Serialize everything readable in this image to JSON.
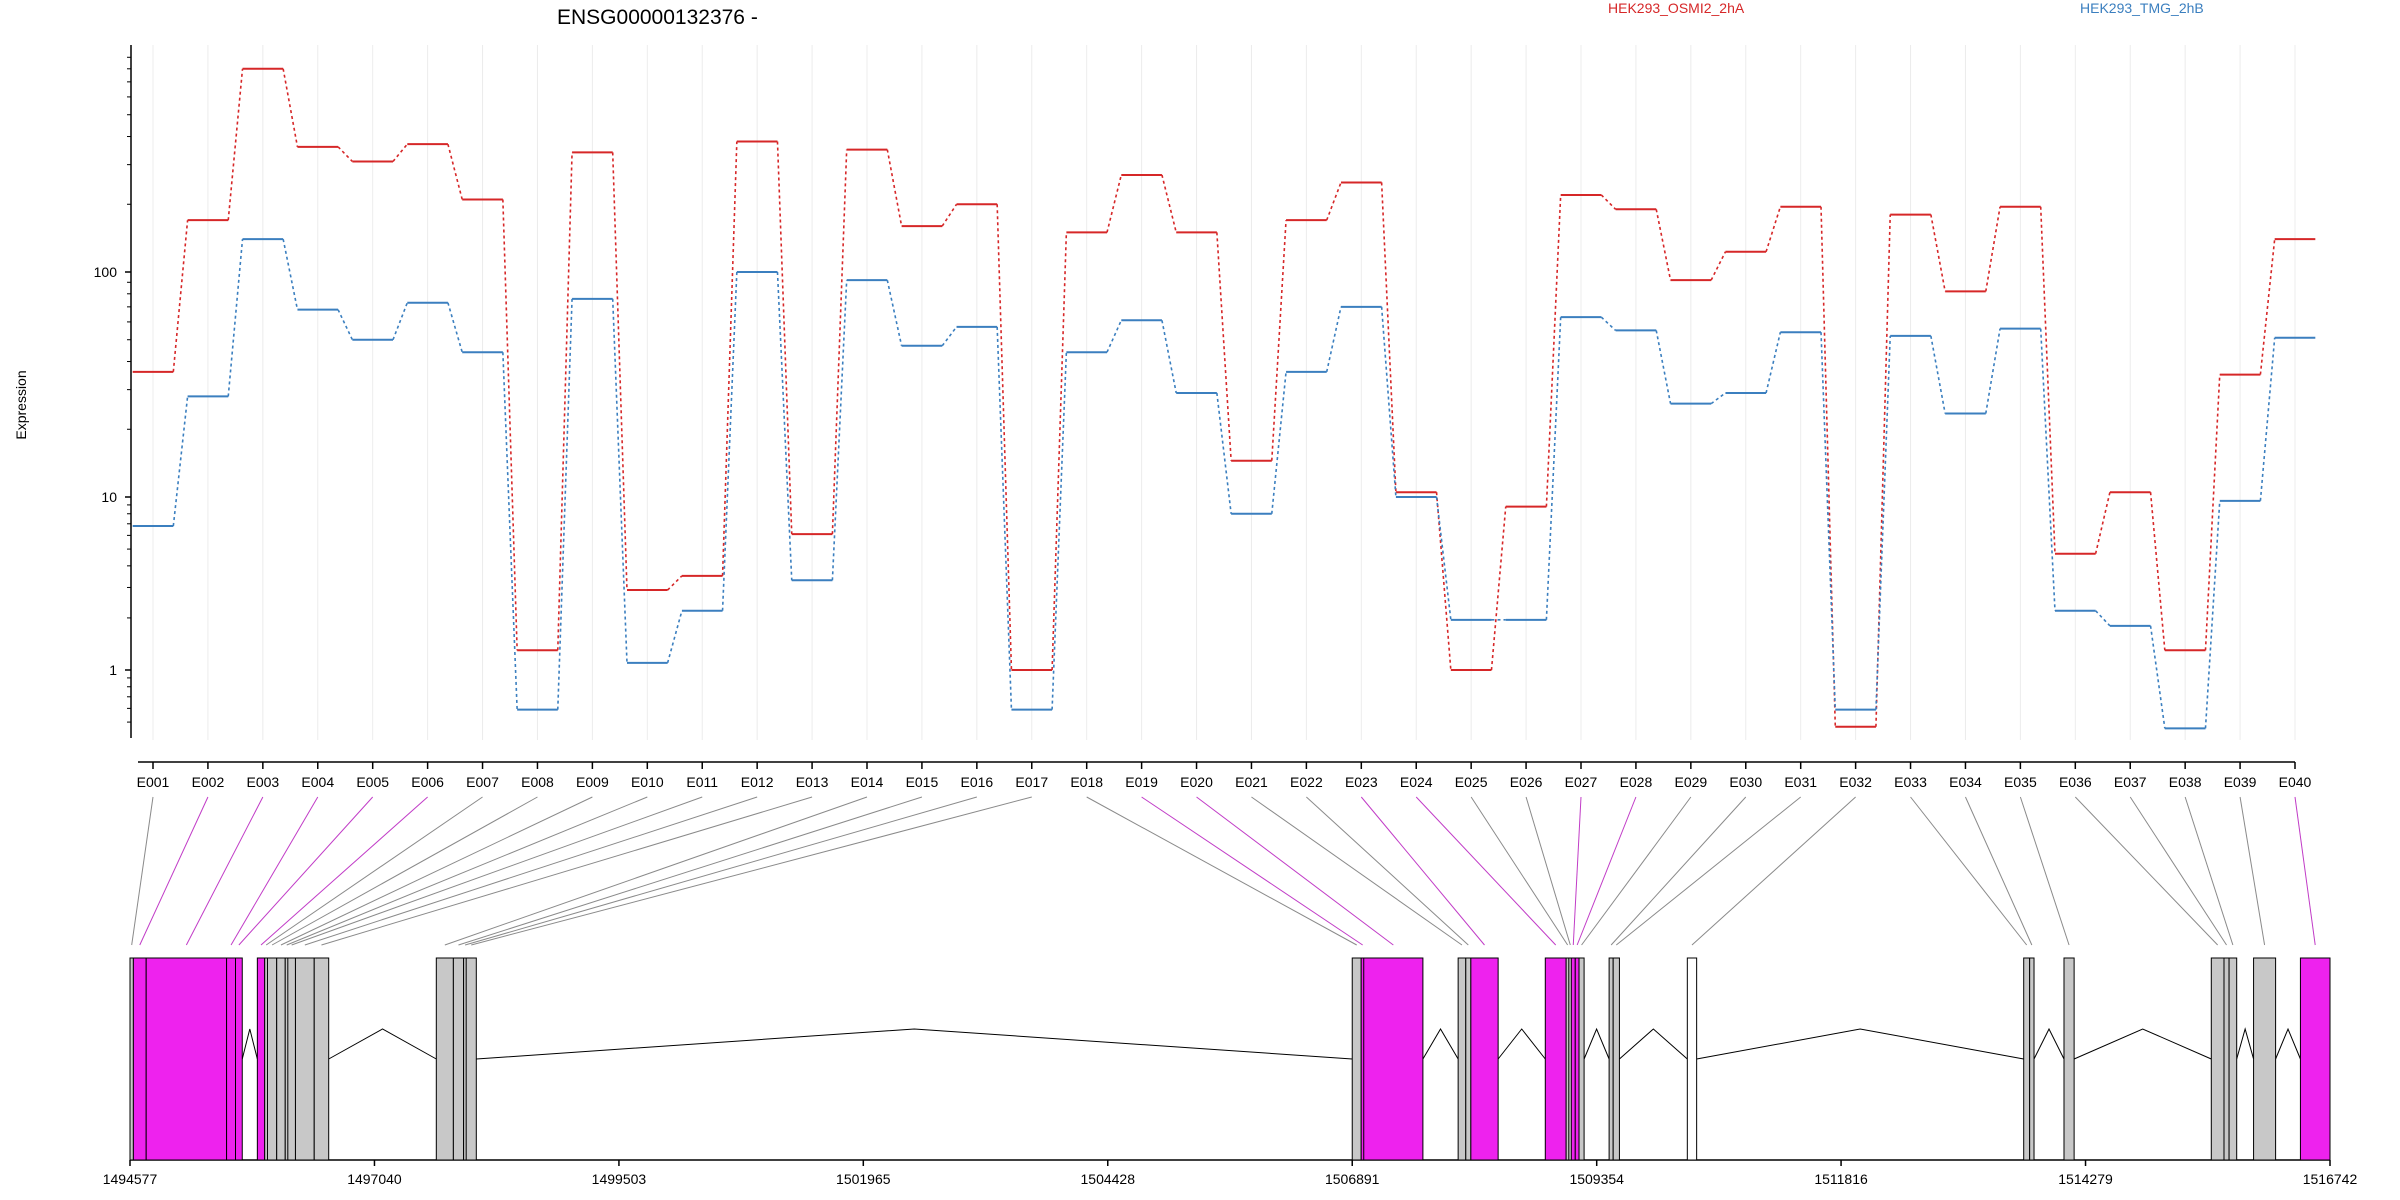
{
  "chart_data": {
    "type": "line",
    "title": "ENSG00000132376 -",
    "ylabel": "Expression",
    "yscale": "log",
    "y_ticks": [
      "1",
      "10",
      "100"
    ],
    "ylim": [
      0.35,
      1000
    ],
    "categories": [
      "E001",
      "E002",
      "E003",
      "E004",
      "E005",
      "E006",
      "E007",
      "E008",
      "E009",
      "E010",
      "E011",
      "E012",
      "E013",
      "E014",
      "E015",
      "E016",
      "E017",
      "E018",
      "E019",
      "E020",
      "E021",
      "E022",
      "E023",
      "E024",
      "E025",
      "E026",
      "E027",
      "E028",
      "E029",
      "E030",
      "E031",
      "E032",
      "E033",
      "E034",
      "E035",
      "E036",
      "E037",
      "E038",
      "E039",
      "E040"
    ],
    "series": [
      {
        "name": "HEK293_OSMI2_2hA",
        "color": "#d62728",
        "values": [
          36,
          170,
          800,
          360,
          310,
          370,
          210,
          1.3,
          340,
          2.9,
          3.5,
          380,
          6.1,
          350,
          160,
          200,
          1.0,
          150,
          270,
          150,
          14.5,
          170,
          250,
          10.5,
          1.0,
          8.8,
          220,
          190,
          92,
          123,
          195,
          0.47,
          180,
          82,
          195,
          4.7,
          10.5,
          1.3,
          35,
          140
        ]
      },
      {
        "name": "HEK293_TMG_2hB",
        "color": "#3b7fbf",
        "values": [
          6.8,
          28,
          140,
          68,
          50,
          73,
          44,
          0.59,
          76,
          1.1,
          2.2,
          100,
          3.3,
          92,
          47,
          57,
          0.59,
          44,
          61,
          29,
          8,
          36,
          70,
          10,
          1.95,
          1.95,
          63,
          55,
          26,
          29,
          54,
          0.59,
          52,
          23.5,
          56,
          2.2,
          1.8,
          0.46,
          9.5,
          51
        ]
      }
    ],
    "genomic_axis": {
      "tick_labels": [
        "1494577",
        "1497040",
        "1499503",
        "1501965",
        "1504428",
        "1506891",
        "1509354",
        "1511816",
        "1514279",
        "1516742"
      ]
    },
    "exons": [
      {
        "id": "E001",
        "start": 1494577,
        "end": 1494611,
        "color": "#c8c8c8"
      },
      {
        "id": "E002",
        "start": 1494611,
        "end": 1494740,
        "color": "#ee22ee"
      },
      {
        "id": "E003",
        "start": 1494740,
        "end": 1495550,
        "color": "#ee22ee"
      },
      {
        "id": "E004",
        "start": 1495550,
        "end": 1495640,
        "color": "#ee22ee"
      },
      {
        "id": "E005",
        "start": 1495640,
        "end": 1495708,
        "color": "#ee22ee"
      },
      {
        "id": "E006",
        "start": 1495860,
        "end": 1495934,
        "color": "#ee22ee"
      },
      {
        "id": "E007",
        "start": 1495934,
        "end": 1495962,
        "color": "#c8c8c8"
      },
      {
        "id": "E008",
        "start": 1495962,
        "end": 1496055,
        "color": "#c8c8c8"
      },
      {
        "id": "E009",
        "start": 1496055,
        "end": 1496141,
        "color": "#c8c8c8"
      },
      {
        "id": "E010",
        "start": 1496141,
        "end": 1496167,
        "color": "#c8c8c8"
      },
      {
        "id": "E011",
        "start": 1496167,
        "end": 1496244,
        "color": "#c8c8c8"
      },
      {
        "id": "E012",
        "start": 1496244,
        "end": 1496433,
        "color": "#c8c8c8"
      },
      {
        "id": "E013",
        "start": 1496433,
        "end": 1496579,
        "color": "#c8c8c8"
      },
      {
        "id": "E014",
        "start": 1497663,
        "end": 1497835,
        "color": "#c8c8c8"
      },
      {
        "id": "E015",
        "start": 1497835,
        "end": 1497938,
        "color": "#c8c8c8"
      },
      {
        "id": "E016",
        "start": 1497938,
        "end": 1497964,
        "color": "#c8c8c8"
      },
      {
        "id": "E017",
        "start": 1497964,
        "end": 1498066,
        "color": "#c8c8c8"
      },
      {
        "id": "E018",
        "start": 1506891,
        "end": 1506981,
        "color": "#c8c8c8"
      },
      {
        "id": "E019",
        "start": 1506981,
        "end": 1507007,
        "color": "#ee22ee"
      },
      {
        "id": "E020",
        "start": 1507007,
        "end": 1507603,
        "color": "#ee22ee"
      },
      {
        "id": "E021",
        "start": 1507958,
        "end": 1508035,
        "color": "#c8c8c8"
      },
      {
        "id": "E022",
        "start": 1508035,
        "end": 1508086,
        "color": "#c8c8c8"
      },
      {
        "id": "E023",
        "start": 1508086,
        "end": 1508361,
        "color": "#ee22ee"
      },
      {
        "id": "E024",
        "start": 1508836,
        "end": 1509046,
        "color": "#ee22ee"
      },
      {
        "id": "E025",
        "start": 1509046,
        "end": 1509073,
        "color": "#c8c8c8"
      },
      {
        "id": "E026",
        "start": 1509073,
        "end": 1509098,
        "color": "#c8c8c8"
      },
      {
        "id": "E027",
        "start": 1509098,
        "end": 1509138,
        "color": "#ee22ee"
      },
      {
        "id": "E028",
        "start": 1509138,
        "end": 1509176,
        "color": "#ee22ee"
      },
      {
        "id": "E029",
        "start": 1509176,
        "end": 1509227,
        "color": "#c8c8c8"
      },
      {
        "id": "E030",
        "start": 1509479,
        "end": 1509520,
        "color": "#c8c8c8"
      },
      {
        "id": "E031",
        "start": 1509520,
        "end": 1509583,
        "color": "#c8c8c8"
      },
      {
        "id": "E032",
        "start": 1510267,
        "end": 1510361,
        "color": "#ffffff"
      },
      {
        "id": "E033",
        "start": 1513656,
        "end": 1513716,
        "color": "#c8c8c8"
      },
      {
        "id": "E034",
        "start": 1513716,
        "end": 1513760,
        "color": "#c8c8c8"
      },
      {
        "id": "E035",
        "start": 1514062,
        "end": 1514164,
        "color": "#c8c8c8"
      },
      {
        "id": "E036",
        "start": 1515546,
        "end": 1515674,
        "color": "#c8c8c8"
      },
      {
        "id": "E037",
        "start": 1515674,
        "end": 1515725,
        "color": "#c8c8c8"
      },
      {
        "id": "E038",
        "start": 1515725,
        "end": 1515802,
        "color": "#c8c8c8"
      },
      {
        "id": "E039",
        "start": 1515972,
        "end": 1516194,
        "color": "#c8c8c8"
      },
      {
        "id": "E040",
        "start": 1516444,
        "end": 1516742,
        "color": "#ee22ee"
      }
    ]
  }
}
